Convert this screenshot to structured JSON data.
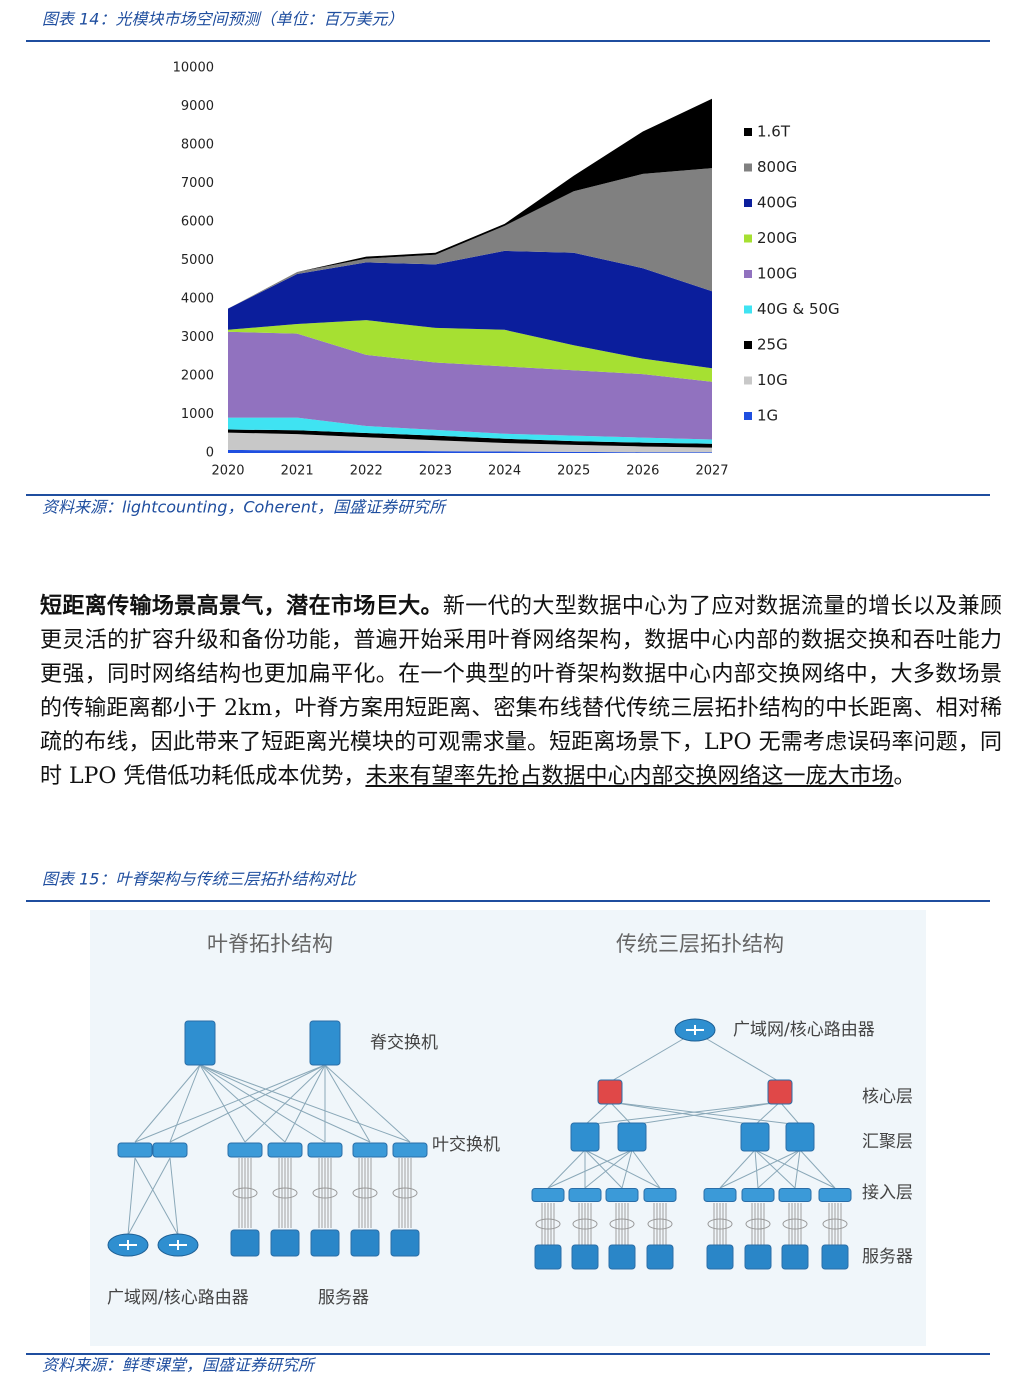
{
  "chart_data": {
    "type": "stacked_area",
    "caption": "图表 14：光模块市场空间预测（单位：百万美元）",
    "categories": [
      "2020",
      "2021",
      "2022",
      "2023",
      "2024",
      "2025",
      "2026",
      "2027"
    ],
    "series": [
      {
        "name": "1G",
        "color": "#1f4fe0",
        "values": [
          80,
          70,
          60,
          50,
          40,
          30,
          20,
          20
        ]
      },
      {
        "name": "10G",
        "color": "#c8c8c8",
        "values": [
          450,
          420,
          350,
          280,
          220,
          180,
          150,
          120
        ]
      },
      {
        "name": "25G",
        "color": "#000000",
        "values": [
          80,
          100,
          110,
          120,
          110,
          100,
          100,
          100
        ]
      },
      {
        "name": "40G & 50G",
        "color": "#3fe3f2",
        "values": [
          310,
          330,
          180,
          150,
          130,
          140,
          130,
          110
        ]
      },
      {
        "name": "100G",
        "color": "#9172bf",
        "values": [
          2230,
          2180,
          1850,
          1750,
          1750,
          1700,
          1650,
          1500
        ]
      },
      {
        "name": "200G",
        "color": "#a6e032",
        "values": [
          50,
          250,
          900,
          900,
          950,
          650,
          400,
          350
        ]
      },
      {
        "name": "400G",
        "color": "#0b1e9c",
        "values": [
          550,
          1300,
          1500,
          1650,
          2050,
          2400,
          2350,
          2000
        ]
      },
      {
        "name": "800G",
        "color": "#808080",
        "values": [
          0,
          50,
          100,
          250,
          650,
          1600,
          2450,
          3200
        ]
      },
      {
        "name": "1.6T",
        "color": "#000000",
        "values": [
          0,
          0,
          50,
          50,
          50,
          400,
          1100,
          1800
        ]
      }
    ],
    "ylim": [
      0,
      10000
    ],
    "yticks": [
      0,
      1000,
      2000,
      3000,
      4000,
      5000,
      6000,
      7000,
      8000,
      9000,
      10000
    ],
    "legend": "right",
    "source": "资料来源：lightcounting，Coherent，国盛证券研究所"
  },
  "paragraph": {
    "bold": "短距离传输场景高景气，潜在市场巨大。",
    "text": "新一代的大型数据中心为了应对数据流量的增长以及兼顾更灵活的扩容升级和备份功能，普遍开始采用叶脊网络架构，数据中心内部的数据交换和吞吐能力更强，同时网络结构也更加扁平化。在一个典型的叶脊架构数据中心内部交换网络中，大多数场景的传输距离都小于 2km，叶脊方案用短距离、密集布线替代传统三层拓扑结构的中长距离、相对稀疏的布线，因此带来了短距离光模块的可观需求量。短距离场景下，LPO 无需考虑误码率问题，同时 LPO 凭借低功耗低成本优势，",
    "underlined": "未来有望率先抢占数据中心内部交换网络这一庞大市场",
    "end": "。"
  },
  "figure15": {
    "caption": "图表 15：叶脊架构与传统三层拓扑结构对比",
    "left_title": "叶脊拓扑结构",
    "right_title": "传统三层拓扑结构",
    "spine": "脊交换机",
    "leaf": "叶交换机",
    "left_router": "广域网/核心路由器",
    "left_server": "服务器",
    "right_router": "广域网/核心路由器",
    "core": "核心层",
    "aggregation": "汇聚层",
    "access": "接入层",
    "right_server": "服务器",
    "source": "资料来源：鲜枣课堂，国盛证券研究所"
  }
}
